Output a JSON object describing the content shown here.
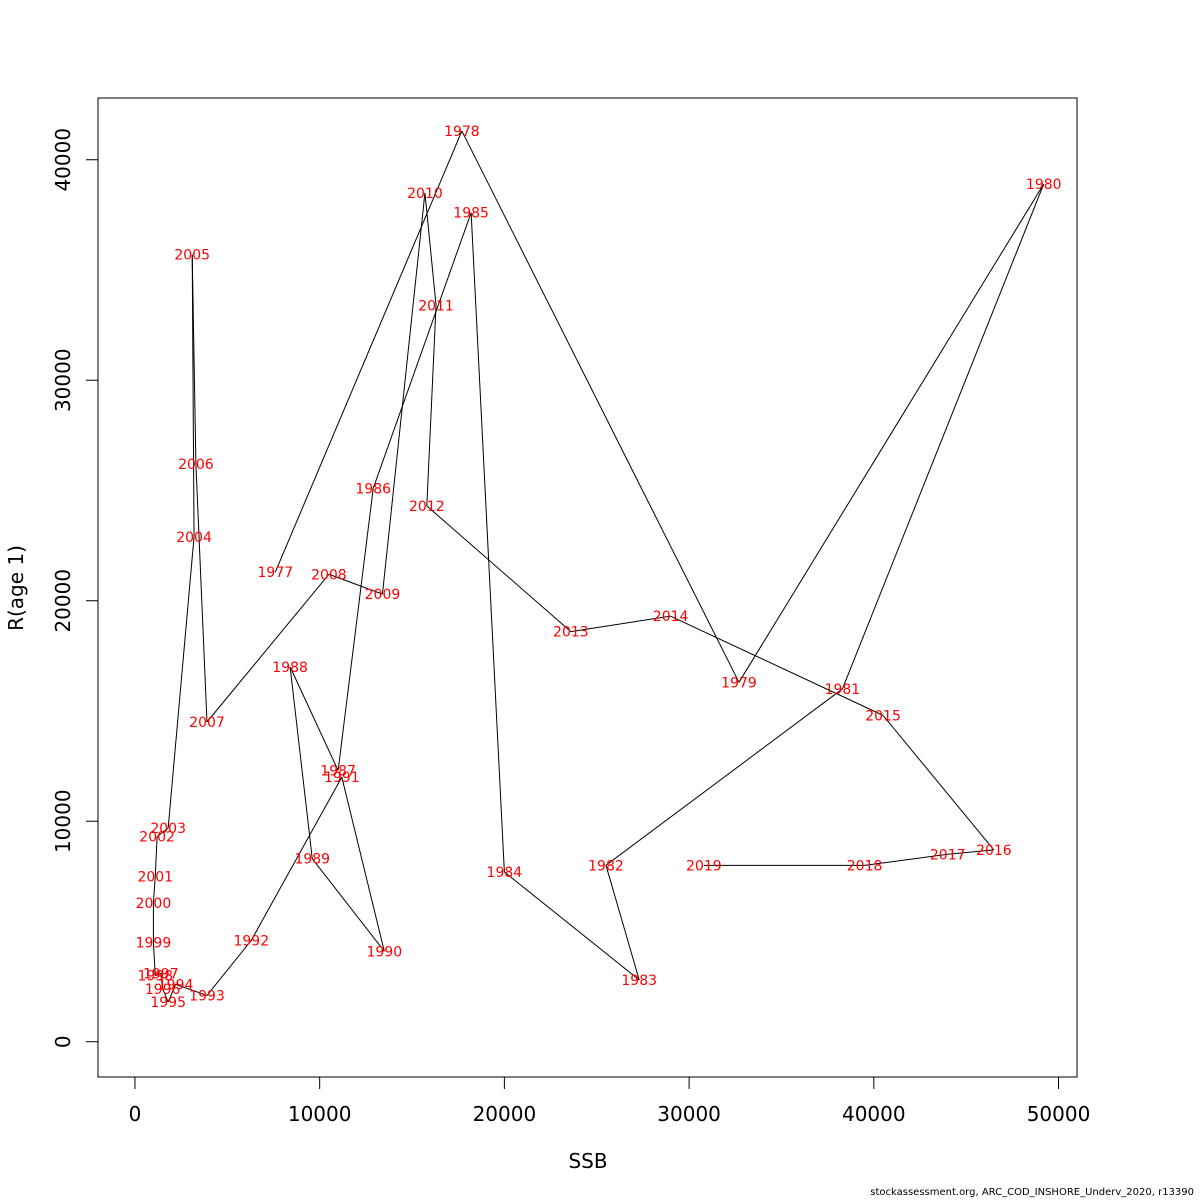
{
  "chart_data": {
    "type": "line",
    "title": "",
    "xlabel": "SSB",
    "ylabel": "R(age 1)",
    "xlim": [
      -2000,
      51000
    ],
    "ylim": [
      -1600,
      42800
    ],
    "xticks": [
      "0",
      "10000",
      "20000",
      "30000",
      "40000",
      "50000"
    ],
    "yticks": [
      "0",
      "10000",
      "20000",
      "30000",
      "40000"
    ],
    "grid": false,
    "legend": "none",
    "line_color": "#000000",
    "label_color": "#ff0000",
    "points": [
      {
        "label": "1977",
        "x": 7600,
        "y": 21300
      },
      {
        "label": "1978",
        "x": 17700,
        "y": 41300
      },
      {
        "label": "1979",
        "x": 32700,
        "y": 16300
      },
      {
        "label": "1980",
        "x": 49200,
        "y": 38900
      },
      {
        "label": "1981",
        "x": 38300,
        "y": 16000
      },
      {
        "label": "1982",
        "x": 25500,
        "y": 8000
      },
      {
        "label": "1983",
        "x": 27300,
        "y": 2800
      },
      {
        "label": "1984",
        "x": 20000,
        "y": 7700
      },
      {
        "label": "1985",
        "x": 18200,
        "y": 37600
      },
      {
        "label": "1986",
        "x": 12900,
        "y": 25100
      },
      {
        "label": "1987",
        "x": 11000,
        "y": 12300
      },
      {
        "label": "1988",
        "x": 8400,
        "y": 17000
      },
      {
        "label": "1989",
        "x": 9600,
        "y": 8300
      },
      {
        "label": "1990",
        "x": 13500,
        "y": 4100
      },
      {
        "label": "1991",
        "x": 11200,
        "y": 12000
      },
      {
        "label": "1992",
        "x": 6300,
        "y": 4600
      },
      {
        "label": "1993",
        "x": 3900,
        "y": 2100
      },
      {
        "label": "1994",
        "x": 2200,
        "y": 2600
      },
      {
        "label": "1995",
        "x": 1800,
        "y": 1800
      },
      {
        "label": "1996",
        "x": 1500,
        "y": 2400
      },
      {
        "label": "1997",
        "x": 1400,
        "y": 3100
      },
      {
        "label": "1998",
        "x": 1100,
        "y": 3000
      },
      {
        "label": "1999",
        "x": 1000,
        "y": 4500
      },
      {
        "label": "2000",
        "x": 1000,
        "y": 6300
      },
      {
        "label": "2001",
        "x": 1100,
        "y": 7500
      },
      {
        "label": "2002",
        "x": 1200,
        "y": 9300
      },
      {
        "label": "2003",
        "x": 1800,
        "y": 9700
      },
      {
        "label": "2004",
        "x": 3200,
        "y": 22900
      },
      {
        "label": "2005",
        "x": 3100,
        "y": 35700
      },
      {
        "label": "2006",
        "x": 3300,
        "y": 26200
      },
      {
        "label": "2007",
        "x": 3900,
        "y": 14500
      },
      {
        "label": "2008",
        "x": 10500,
        "y": 21200
      },
      {
        "label": "2009",
        "x": 13400,
        "y": 20300
      },
      {
        "label": "2010",
        "x": 15700,
        "y": 38500
      },
      {
        "label": "2011",
        "x": 16300,
        "y": 33400
      },
      {
        "label": "2012",
        "x": 15800,
        "y": 24300
      },
      {
        "label": "2013",
        "x": 23600,
        "y": 18600
      },
      {
        "label": "2014",
        "x": 29000,
        "y": 19300
      },
      {
        "label": "2015",
        "x": 40500,
        "y": 14800
      },
      {
        "label": "2016",
        "x": 46500,
        "y": 8700
      },
      {
        "label": "2017",
        "x": 44000,
        "y": 8500
      },
      {
        "label": "2018",
        "x": 39500,
        "y": 8000
      },
      {
        "label": "2019",
        "x": 30800,
        "y": 8000
      }
    ]
  },
  "footer_text": "stockassessment.org, ARC_COD_INSHORE_Underv_2020, r13390"
}
